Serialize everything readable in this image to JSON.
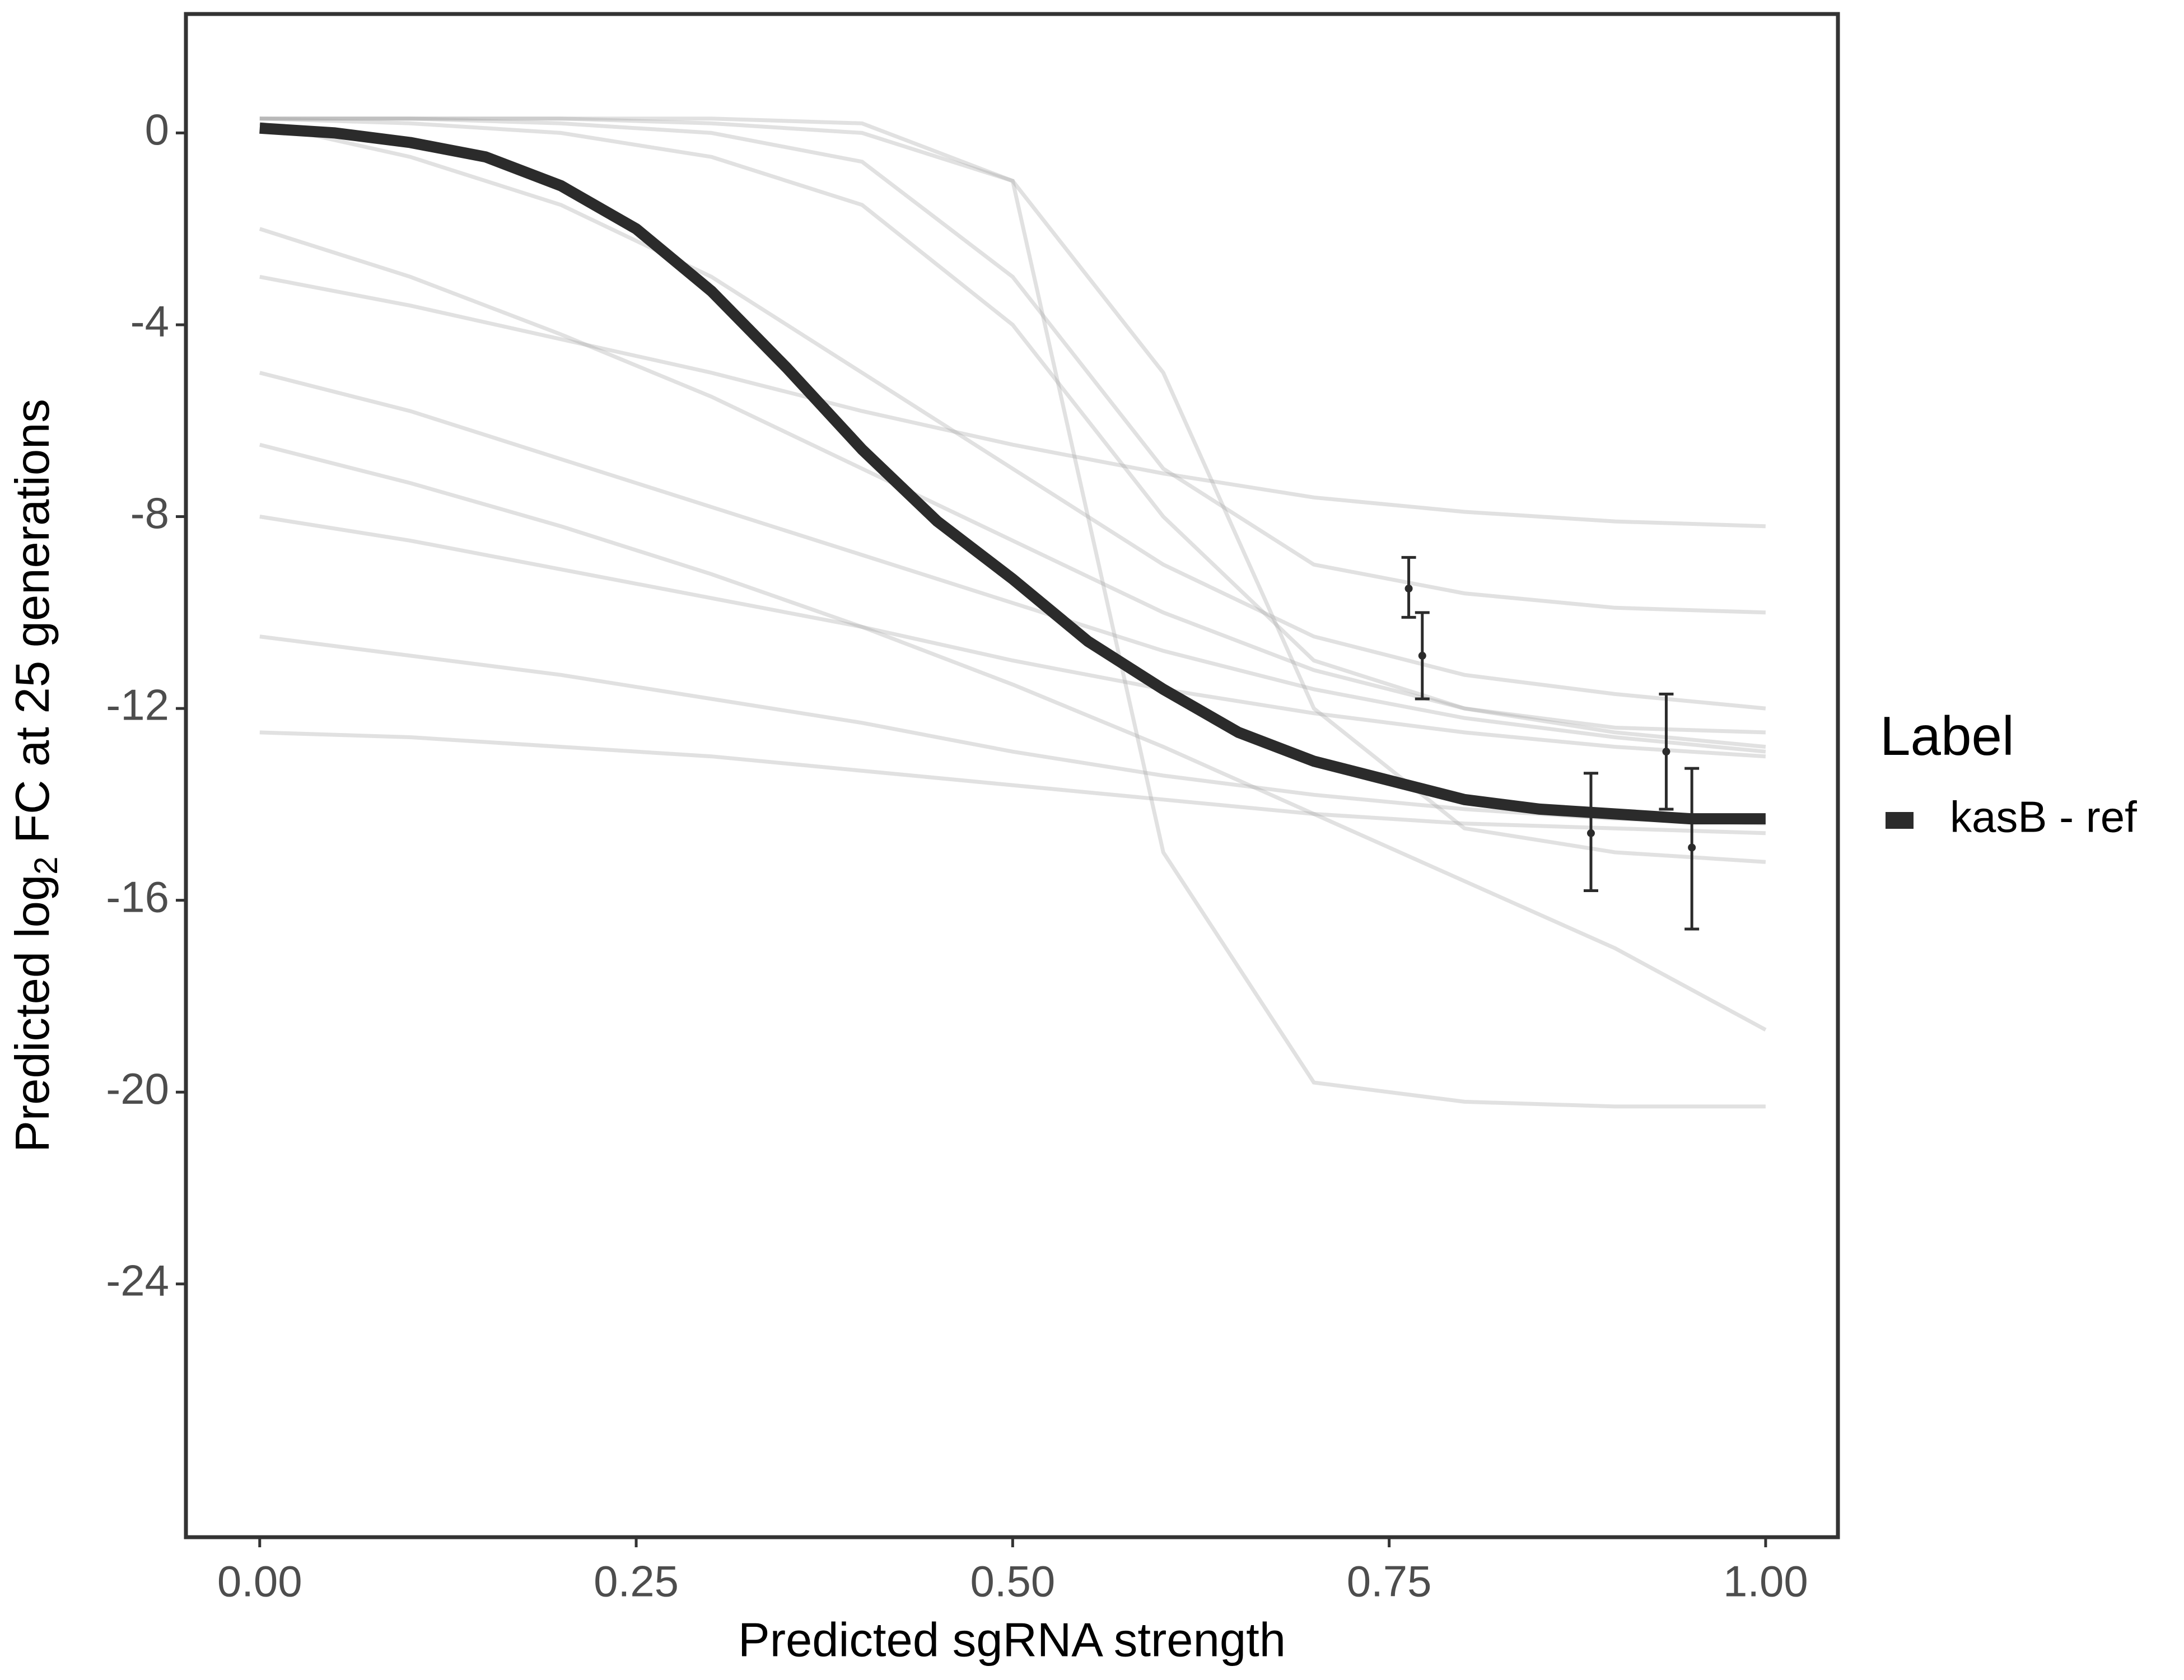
{
  "chart_data": {
    "type": "line",
    "xlabel": "Predicted sgRNA strength",
    "ylabel": [
      "Predicted  log",
      "2",
      " FC at 25 generations"
    ],
    "legend_title": "Label",
    "legend": "right",
    "x": [
      0,
      0.05,
      0.1,
      0.15,
      0.2,
      0.25,
      0.3,
      0.35,
      0.4,
      0.45,
      0.5,
      0.55,
      0.6,
      0.65,
      0.7,
      0.75,
      0.8,
      0.85,
      0.9,
      0.95,
      1.0
    ],
    "series": [
      {
        "name": "kasB - ref",
        "color": "#2b2b2b",
        "values": [
          0.1,
          0.0,
          -0.2,
          -0.5,
          -1.1,
          -2.0,
          -3.3,
          -4.9,
          -6.6,
          -8.1,
          -9.3,
          -10.6,
          -11.6,
          -12.5,
          -13.1,
          -13.5,
          -13.9,
          -14.1,
          -14.2,
          -14.3,
          -14.3
        ]
      }
    ],
    "draws": {
      "color": "#aaaaaa",
      "x": [
        0,
        0.1,
        0.2,
        0.3,
        0.4,
        0.5,
        0.6,
        0.7,
        0.8,
        0.9,
        1.0
      ],
      "values": [
        [
          0.3,
          0.3,
          0.2,
          0,
          -0.6,
          -3,
          -7,
          -9,
          -9.6,
          -9.9,
          -10
        ],
        [
          0.3,
          0.2,
          0,
          -0.5,
          -1.5,
          -4,
          -8,
          -11,
          -12,
          -12.4,
          -12.5
        ],
        [
          0.3,
          0.3,
          0.3,
          0.2,
          0,
          -1,
          -5,
          -12,
          -14.5,
          -15,
          -15.2
        ],
        [
          0.2,
          -0.5,
          -1.5,
          -3,
          -5,
          -7,
          -9,
          -10.5,
          -11.3,
          -11.7,
          -12
        ],
        [
          -2,
          -3,
          -4.2,
          -5.5,
          -7,
          -8.5,
          -10,
          -11.2,
          -12,
          -12.5,
          -12.8
        ],
        [
          -5,
          -5.8,
          -6.8,
          -7.8,
          -8.8,
          -9.8,
          -10.8,
          -11.6,
          -12.2,
          -12.6,
          -12.9
        ],
        [
          -8,
          -8.5,
          -9.1,
          -9.7,
          -10.3,
          -11,
          -11.6,
          -12.1,
          -12.5,
          -12.8,
          -13
        ],
        [
          -10.5,
          -10.9,
          -11.3,
          -11.8,
          -12.3,
          -12.9,
          -13.4,
          -13.8,
          -14.1,
          -14.3,
          -14.4
        ],
        [
          -12.5,
          -12.6,
          -12.8,
          -13,
          -13.3,
          -13.6,
          -13.9,
          -14.2,
          -14.4,
          -14.5,
          -14.6
        ],
        [
          0.3,
          0.3,
          0.3,
          0.3,
          0.2,
          -1,
          -15,
          -19.8,
          -20.2,
          -20.3,
          -20.3
        ],
        [
          -3,
          -3.6,
          -4.3,
          -5,
          -5.8,
          -6.5,
          -7.1,
          -7.6,
          -7.9,
          -8.1,
          -8.2
        ],
        [
          -6.5,
          -7.3,
          -8.2,
          -9.2,
          -10.3,
          -11.5,
          -12.8,
          -14.2,
          -15.6,
          -17,
          -18.7
        ]
      ]
    },
    "points": {
      "color": "#2b2b2b",
      "x": [
        0.763,
        0.772,
        0.884,
        0.934,
        0.951
      ],
      "y": [
        -9.5,
        -10.9,
        -14.6,
        -12.9,
        -14.9
      ],
      "ymin": [
        -10.1,
        -11.8,
        -15.8,
        -14.1,
        -16.6
      ],
      "ymax": [
        -8.85,
        -10.0,
        -13.35,
        -11.7,
        -13.25
      ]
    },
    "xlim": [
      -0.049,
      1.048
    ],
    "ylim": [
      -29.28,
      2.48
    ],
    "xticks": [
      {
        "value": 0,
        "label": "0.00"
      },
      {
        "value": 0.25,
        "label": "0.25"
      },
      {
        "value": 0.5,
        "label": "0.50"
      },
      {
        "value": 0.75,
        "label": "0.75"
      },
      {
        "value": 1.0,
        "label": "1.00"
      }
    ],
    "yticks": [
      0,
      -4,
      -8,
      -12,
      -16,
      -20,
      -24
    ],
    "grid": false
  }
}
